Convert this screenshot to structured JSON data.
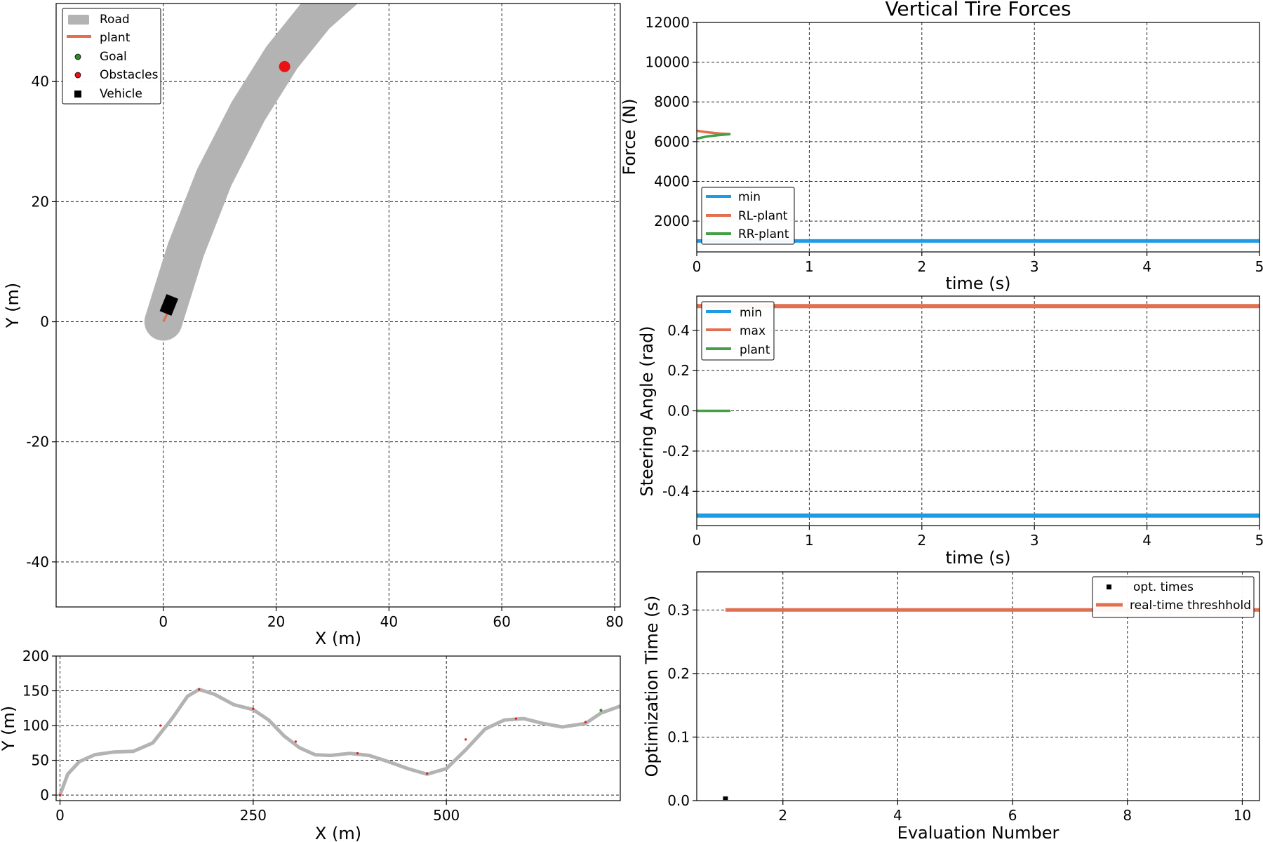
{
  "colors": {
    "road": "#b3b3b3",
    "plant": "#e07050",
    "goal": "#2e8b2e",
    "obstacle": "#ee1111",
    "vehicle": "#000000",
    "min": "#1f9be6",
    "max": "#e07050",
    "green": "#44a047"
  },
  "chart_data": [
    {
      "type": "line",
      "xlabel": "X (m)",
      "ylabel": "Y (m)",
      "xlim": [
        -19,
        81
      ],
      "ylim": [
        -47.5,
        53
      ],
      "xticks": [
        0,
        20,
        40,
        60,
        80
      ],
      "yticks": [
        -40,
        -20,
        0,
        20,
        40
      ],
      "ytick_labels": [
        "-40",
        "-20",
        "0",
        "20",
        "40"
      ],
      "grid": true,
      "legend_position": "top-left",
      "legend": [
        "Road",
        "plant",
        "Goal",
        "Obstacles",
        "Vehicle"
      ],
      "road": {
        "x": [
          0,
          4,
          9,
          15,
          21,
          27,
          33
        ],
        "y": [
          0,
          12,
          24,
          35,
          44,
          51,
          56
        ]
      },
      "plant": {
        "x": [
          0,
          0.6,
          1.2
        ],
        "y": [
          0,
          1.2,
          2.4
        ]
      },
      "obstacles": [
        {
          "x": 21.5,
          "y": 42.5
        }
      ],
      "vehicle": {
        "x": 1.0,
        "y": 2.8
      }
    },
    {
      "type": "line",
      "xlabel": "X (m)",
      "ylabel": "Y (m)",
      "xlim": [
        -5,
        725
      ],
      "ylim": [
        -8,
        200
      ],
      "xticks": [
        0,
        250,
        500
      ],
      "yticks": [
        0,
        50,
        100,
        150,
        200
      ],
      "grid": true,
      "track": {
        "x": [
          0,
          10,
          25,
          45,
          70,
          95,
          120,
          145,
          165,
          180,
          200,
          225,
          250,
          270,
          290,
          310,
          330,
          350,
          375,
          400,
          425,
          450,
          475,
          500,
          525,
          550,
          575,
          600,
          625,
          650,
          680,
          700,
          725
        ],
        "y": [
          0,
          30,
          48,
          58,
          62,
          63,
          75,
          110,
          142,
          152,
          145,
          130,
          123,
          108,
          85,
          68,
          58,
          57,
          60,
          57,
          48,
          38,
          30,
          38,
          65,
          95,
          108,
          110,
          103,
          98,
          103,
          118,
          128
        ]
      },
      "markers": {
        "x": [
          0,
          130,
          180,
          250,
          305,
          385,
          475,
          525,
          590,
          680
        ],
        "y": [
          0,
          100,
          152,
          124,
          77,
          60,
          31,
          80,
          110,
          105
        ]
      },
      "goal": {
        "x": 700,
        "y": 122
      }
    },
    {
      "type": "line",
      "title": "Vertical Tire Forces",
      "xlabel": "time (s)",
      "ylabel": "Force (N)",
      "xlim": [
        0,
        5
      ],
      "ylim": [
        450,
        12000
      ],
      "xticks": [
        0,
        1,
        2,
        3,
        4,
        5
      ],
      "yticks": [
        2000,
        4000,
        6000,
        8000,
        10000,
        12000
      ],
      "grid": true,
      "legend_position": "bottom-left",
      "series": [
        {
          "name": "min",
          "x": [
            0,
            5
          ],
          "y": [
            1000,
            1000
          ]
        },
        {
          "name": "RL-plant",
          "x": [
            0,
            0.1,
            0.2,
            0.3
          ],
          "y": [
            6550,
            6470,
            6410,
            6380
          ]
        },
        {
          "name": "RR-plant",
          "x": [
            0,
            0.1,
            0.2,
            0.3
          ],
          "y": [
            6150,
            6270,
            6330,
            6380
          ]
        }
      ]
    },
    {
      "type": "line",
      "xlabel": "time (s)",
      "ylabel": "Steering Angle (rad)",
      "xlim": [
        0,
        5
      ],
      "ylim": [
        -0.57,
        0.57
      ],
      "xticks": [
        0,
        1,
        2,
        3,
        4,
        5
      ],
      "yticks": [
        -0.4,
        -0.2,
        0.0,
        0.2,
        0.4
      ],
      "ytick_labels": [
        "-0.4",
        "-0.2",
        "0.0",
        "0.2",
        "0.4"
      ],
      "grid": true,
      "legend_position": "top-left",
      "series": [
        {
          "name": "min",
          "x": [
            0,
            5
          ],
          "y": [
            -0.52,
            -0.52
          ]
        },
        {
          "name": "max",
          "x": [
            0,
            5
          ],
          "y": [
            0.52,
            0.52
          ]
        },
        {
          "name": "plant",
          "x": [
            0,
            0.3
          ],
          "y": [
            0,
            0
          ]
        }
      ]
    },
    {
      "type": "scatter",
      "xlabel": "Evaluation Number",
      "ylabel": "Optimization Time (s)",
      "xlim": [
        0.5,
        10.3
      ],
      "ylim": [
        0,
        0.36
      ],
      "xticks": [
        2,
        4,
        6,
        8,
        10
      ],
      "yticks": [
        0.0,
        0.1,
        0.2,
        0.3
      ],
      "ytick_labels": [
        "0.0",
        "0.1",
        "0.2",
        "0.3"
      ],
      "grid": true,
      "legend_position": "top-right",
      "series": [
        {
          "name": "opt. times",
          "x": [
            1
          ],
          "y": [
            0.001
          ]
        },
        {
          "name": "real-time threshhold",
          "x": [
            1,
            10.3
          ],
          "y": [
            0.3,
            0.3
          ]
        }
      ]
    }
  ]
}
